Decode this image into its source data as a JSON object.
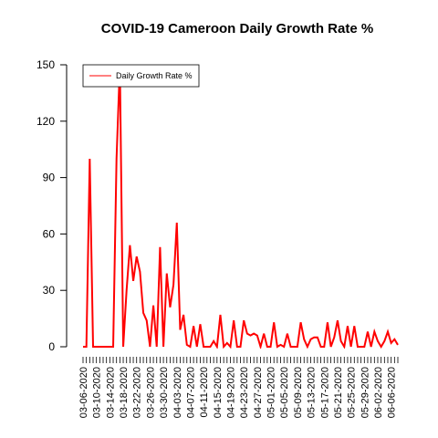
{
  "chart_data": {
    "type": "line",
    "title": "COVID-19 Cameroon Daily Growth Rate %",
    "xlabel": "",
    "ylabel": "",
    "ylim": [
      0,
      150
    ],
    "yticks": [
      0,
      30,
      60,
      90,
      120,
      150
    ],
    "legend": {
      "placement": "top-left",
      "entries": [
        "Daily Growth Rate %"
      ]
    },
    "x_tick_labels": [
      "03-06-2020",
      "03-10-2020",
      "03-14-2020",
      "03-18-2020",
      "03-22-2020",
      "03-26-2020",
      "03-30-2020",
      "04-03-2020",
      "04-07-2020",
      "04-11-2020",
      "04-15-2020",
      "04-19-2020",
      "04-23-2020",
      "04-27-2020",
      "05-01-2020",
      "05-05-2020",
      "05-09-2020",
      "05-13-2020",
      "05-17-2020",
      "05-21-2020",
      "05-25-2020",
      "05-29-2020",
      "06-02-2020",
      "06-06-2020"
    ],
    "x": [
      "03-06-2020",
      "03-07-2020",
      "03-08-2020",
      "03-09-2020",
      "03-10-2020",
      "03-11-2020",
      "03-12-2020",
      "03-13-2020",
      "03-14-2020",
      "03-15-2020",
      "03-16-2020",
      "03-17-2020",
      "03-18-2020",
      "03-19-2020",
      "03-20-2020",
      "03-21-2020",
      "03-22-2020",
      "03-23-2020",
      "03-24-2020",
      "03-25-2020",
      "03-26-2020",
      "03-27-2020",
      "03-28-2020",
      "03-29-2020",
      "03-30-2020",
      "03-31-2020",
      "04-01-2020",
      "04-02-2020",
      "04-03-2020",
      "04-04-2020",
      "04-05-2020",
      "04-06-2020",
      "04-07-2020",
      "04-08-2020",
      "04-09-2020",
      "04-10-2020",
      "04-11-2020",
      "04-12-2020",
      "04-13-2020",
      "04-14-2020",
      "04-15-2020",
      "04-16-2020",
      "04-17-2020",
      "04-18-2020",
      "04-19-2020",
      "04-20-2020",
      "04-21-2020",
      "04-22-2020",
      "04-23-2020",
      "04-24-2020",
      "04-25-2020",
      "04-26-2020",
      "04-27-2020",
      "04-28-2020",
      "04-29-2020",
      "04-30-2020",
      "05-01-2020",
      "05-02-2020",
      "05-03-2020",
      "05-04-2020",
      "05-05-2020",
      "05-06-2020",
      "05-07-2020",
      "05-08-2020",
      "05-09-2020",
      "05-10-2020",
      "05-11-2020",
      "05-12-2020",
      "05-13-2020",
      "05-14-2020",
      "05-15-2020",
      "05-16-2020",
      "05-17-2020",
      "05-18-2020",
      "05-19-2020",
      "05-20-2020",
      "05-21-2020",
      "05-22-2020",
      "05-23-2020",
      "05-24-2020",
      "05-25-2020",
      "05-26-2020",
      "05-27-2020",
      "05-28-2020",
      "05-29-2020",
      "05-30-2020",
      "05-31-2020",
      "06-01-2020",
      "06-02-2020",
      "06-03-2020",
      "06-04-2020",
      "06-05-2020",
      "06-06-2020",
      "06-07-2020",
      "06-08-2020"
    ],
    "series": [
      {
        "name": "Daily Growth Rate %",
        "color": "#ff0000",
        "values": [
          0,
          0,
          100,
          0,
          0,
          0,
          0,
          0,
          0,
          0,
          100,
          150,
          0,
          30,
          54,
          35,
          48,
          40,
          18,
          14,
          0,
          22,
          0,
          53,
          0,
          39,
          21,
          33,
          66,
          9,
          17,
          1,
          0,
          11,
          0,
          12,
          0,
          0,
          0,
          3,
          0,
          17,
          0,
          2,
          0,
          14,
          0,
          0,
          14,
          7,
          6,
          7,
          6,
          0,
          7,
          0,
          0,
          13,
          0,
          1,
          0,
          7,
          0,
          0,
          0,
          13,
          4,
          0,
          4,
          5,
          5,
          0,
          0,
          13,
          0,
          5,
          14,
          3,
          0,
          11,
          0,
          11,
          0,
          0,
          0,
          8,
          0,
          8,
          3,
          0,
          3,
          8,
          2,
          4,
          1
        ]
      }
    ]
  }
}
